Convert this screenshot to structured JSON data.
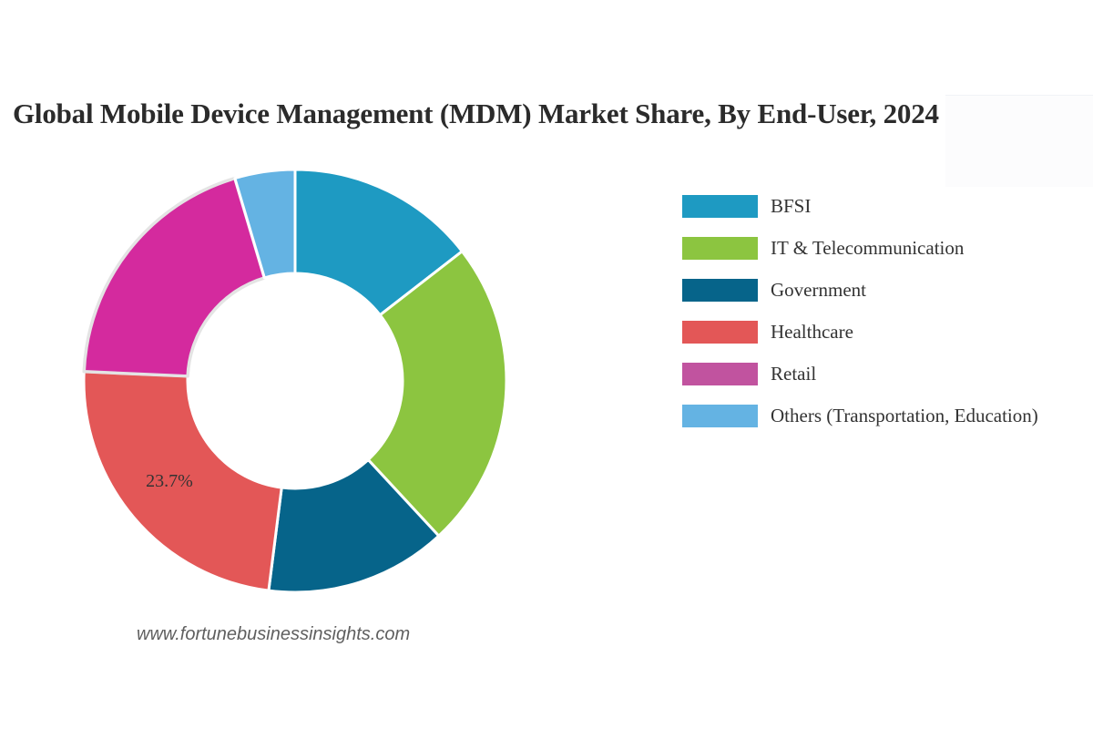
{
  "header": {
    "title": "Global Mobile Device Management (MDM) Market Share, By End-User, 2024"
  },
  "legend": {
    "items": [
      {
        "label": "BFSI",
        "color": "#1e9ac2"
      },
      {
        "label": "IT & Telecommunication",
        "color": "#8cc540"
      },
      {
        "label": "Government",
        "color": "#06648a"
      },
      {
        "label": "Healthcare",
        "color": "#e35757"
      },
      {
        "label": "Retail",
        "color": "#c1539f"
      },
      {
        "label": "Others (Transportation, Education)",
        "color": "#64b3e3"
      }
    ]
  },
  "annotation": {
    "healthcare_label": "23.7%"
  },
  "footer": {
    "source": "www.fortunebusinessinsights.com"
  },
  "chart_data": {
    "type": "pie",
    "subtype": "donut",
    "title": "Global Mobile Device Management (MDM) Market Share, By End-User, 2024",
    "categories": [
      "BFSI",
      "IT & Telecommunication",
      "Government",
      "Healthcare",
      "Retail",
      "Others (Transportation, Education)"
    ],
    "values": [
      14.5,
      23.6,
      13.9,
      23.7,
      19.7,
      4.6
    ],
    "colors": [
      "#1e9ac2",
      "#8cc540",
      "#06648a",
      "#e35757",
      "#d42a9e",
      "#64b3e3"
    ],
    "labeled_values": {
      "Healthcare": "23.7%"
    },
    "start_angle_deg": 0,
    "direction": "clockwise",
    "center": [
      324,
      418
    ],
    "outer_radius": 232,
    "inner_radius": 118,
    "legend_position": "right",
    "source": "www.fortunebusinessinsights.com"
  }
}
